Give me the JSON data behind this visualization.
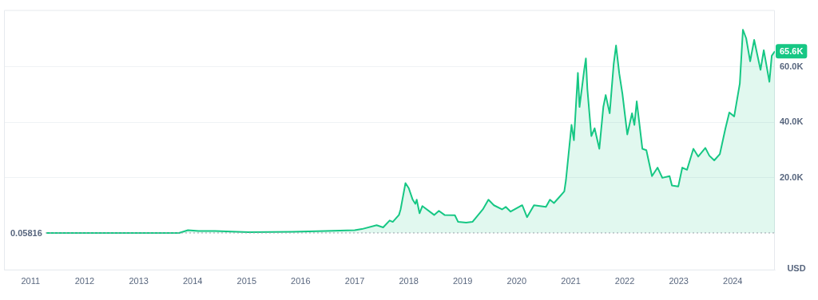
{
  "chart_data": {
    "type": "area",
    "ylabel": "USD",
    "x": [
      "2011-04-18",
      "2011-09-01",
      "2012-06-01",
      "2013-04-01",
      "2013-10-01",
      "2013-11-30",
      "2014-02-10",
      "2014-06-01",
      "2015-01-15",
      "2015-11-05",
      "2016-06-15",
      "2017-01-01",
      "2017-02-18",
      "2017-05-29",
      "2017-07-12",
      "2017-08-25",
      "2017-09-15",
      "2017-10-27",
      "2017-11-07",
      "2017-12-10",
      "2018-01-01",
      "2018-01-28",
      "2018-02-15",
      "2018-02-24",
      "2018-03-15",
      "2018-04-03",
      "2018-06-22",
      "2018-07-24",
      "2018-08-31",
      "2018-11-09",
      "2018-12-01",
      "2019-01-24",
      "2019-03-08",
      "2019-05-17",
      "2019-06-24",
      "2019-07-31",
      "2019-09-24",
      "2019-10-19",
      "2019-11-21",
      "2020-01-26",
      "2020-02-08",
      "2020-03-11",
      "2020-04-27",
      "2020-07-17",
      "2020-08-13",
      "2020-09-09",
      "2020-10-13",
      "2020-11-18",
      "2020-11-29",
      "2021-01-06",
      "2021-01-22",
      "2021-02-18",
      "2021-03-01",
      "2021-04-02",
      "2021-04-13",
      "2021-04-23",
      "2021-05-20",
      "2021-06-11",
      "2021-07-13",
      "2021-08-09",
      "2021-08-25",
      "2021-09-21",
      "2021-10-18",
      "2021-11-03",
      "2021-11-25",
      "2021-12-16",
      "2022-01-18",
      "2022-02-19",
      "2022-03-07",
      "2022-03-23",
      "2022-04-30",
      "2022-05-27",
      "2022-07-04",
      "2022-08-11",
      "2022-09-12",
      "2022-10-31",
      "2022-11-16",
      "2022-12-29",
      "2023-01-25",
      "2023-02-26",
      "2023-04-10",
      "2023-05-13",
      "2023-06-30",
      "2023-07-27",
      "2023-08-29",
      "2023-10-06",
      "2023-11-13",
      "2023-12-09",
      "2024-01-11",
      "2024-02-18",
      "2024-03-10",
      "2024-04-01",
      "2024-04-28",
      "2024-05-25",
      "2024-07-07",
      "2024-07-29",
      "2024-09-05",
      "2024-09-21",
      "2024-10-12"
    ],
    "series": [
      {
        "color": "#16c784",
        "values": [
          0,
          0,
          0,
          0,
          0,
          1000,
          700,
          700,
          300,
          400,
          700,
          1000,
          1400,
          2800,
          2000,
          4500,
          4000,
          6500,
          8500,
          18000,
          16200,
          12000,
          10500,
          12000,
          7100,
          9700,
          6500,
          8000,
          6500,
          6400,
          4000,
          3700,
          4000,
          8500,
          12000,
          10000,
          8500,
          9400,
          7700,
          9700,
          10000,
          5700,
          10000,
          9400,
          12000,
          10800,
          12800,
          15000,
          19000,
          39000,
          33500,
          57800,
          45500,
          59000,
          63000,
          52000,
          35000,
          37800,
          30400,
          45500,
          49800,
          43200,
          61000,
          67700,
          57500,
          50300,
          35600,
          43200,
          39000,
          47500,
          30400,
          29900,
          20500,
          23600,
          19900,
          20500,
          17100,
          16800,
          23600,
          22800,
          30400,
          27600,
          30700,
          27900,
          26200,
          28500,
          37800,
          43500,
          42100,
          54000,
          73400,
          70300,
          62000,
          69700,
          58900,
          66000,
          54600,
          64000,
          65600
        ]
      }
    ],
    "xlim": [
      "2010-07-05",
      "2024-10-12"
    ],
    "xticks": [
      "2011",
      "2012",
      "2013",
      "2014",
      "2015",
      "2016",
      "2017",
      "2018",
      "2019",
      "2020",
      "2021",
      "2022",
      "2023",
      "2024"
    ],
    "ylim": [
      -13500,
      80500
    ],
    "yticks": [
      {
        "value": 20000,
        "label": "20.0K"
      },
      {
        "value": 40000,
        "label": "40.0K"
      },
      {
        "value": 60000,
        "label": "60.0K"
      }
    ],
    "grid": "y",
    "legend": false,
    "marker": "none",
    "line_style": "solid",
    "ref_lines": [
      {
        "axis": "y",
        "value": 0.05816,
        "label": "0.05816",
        "line_style": "dotted",
        "color": "#9aa0aa"
      }
    ],
    "annotations": [
      {
        "text": "65.6K",
        "x": "2024-10-12",
        "y": 65600
      }
    ]
  }
}
